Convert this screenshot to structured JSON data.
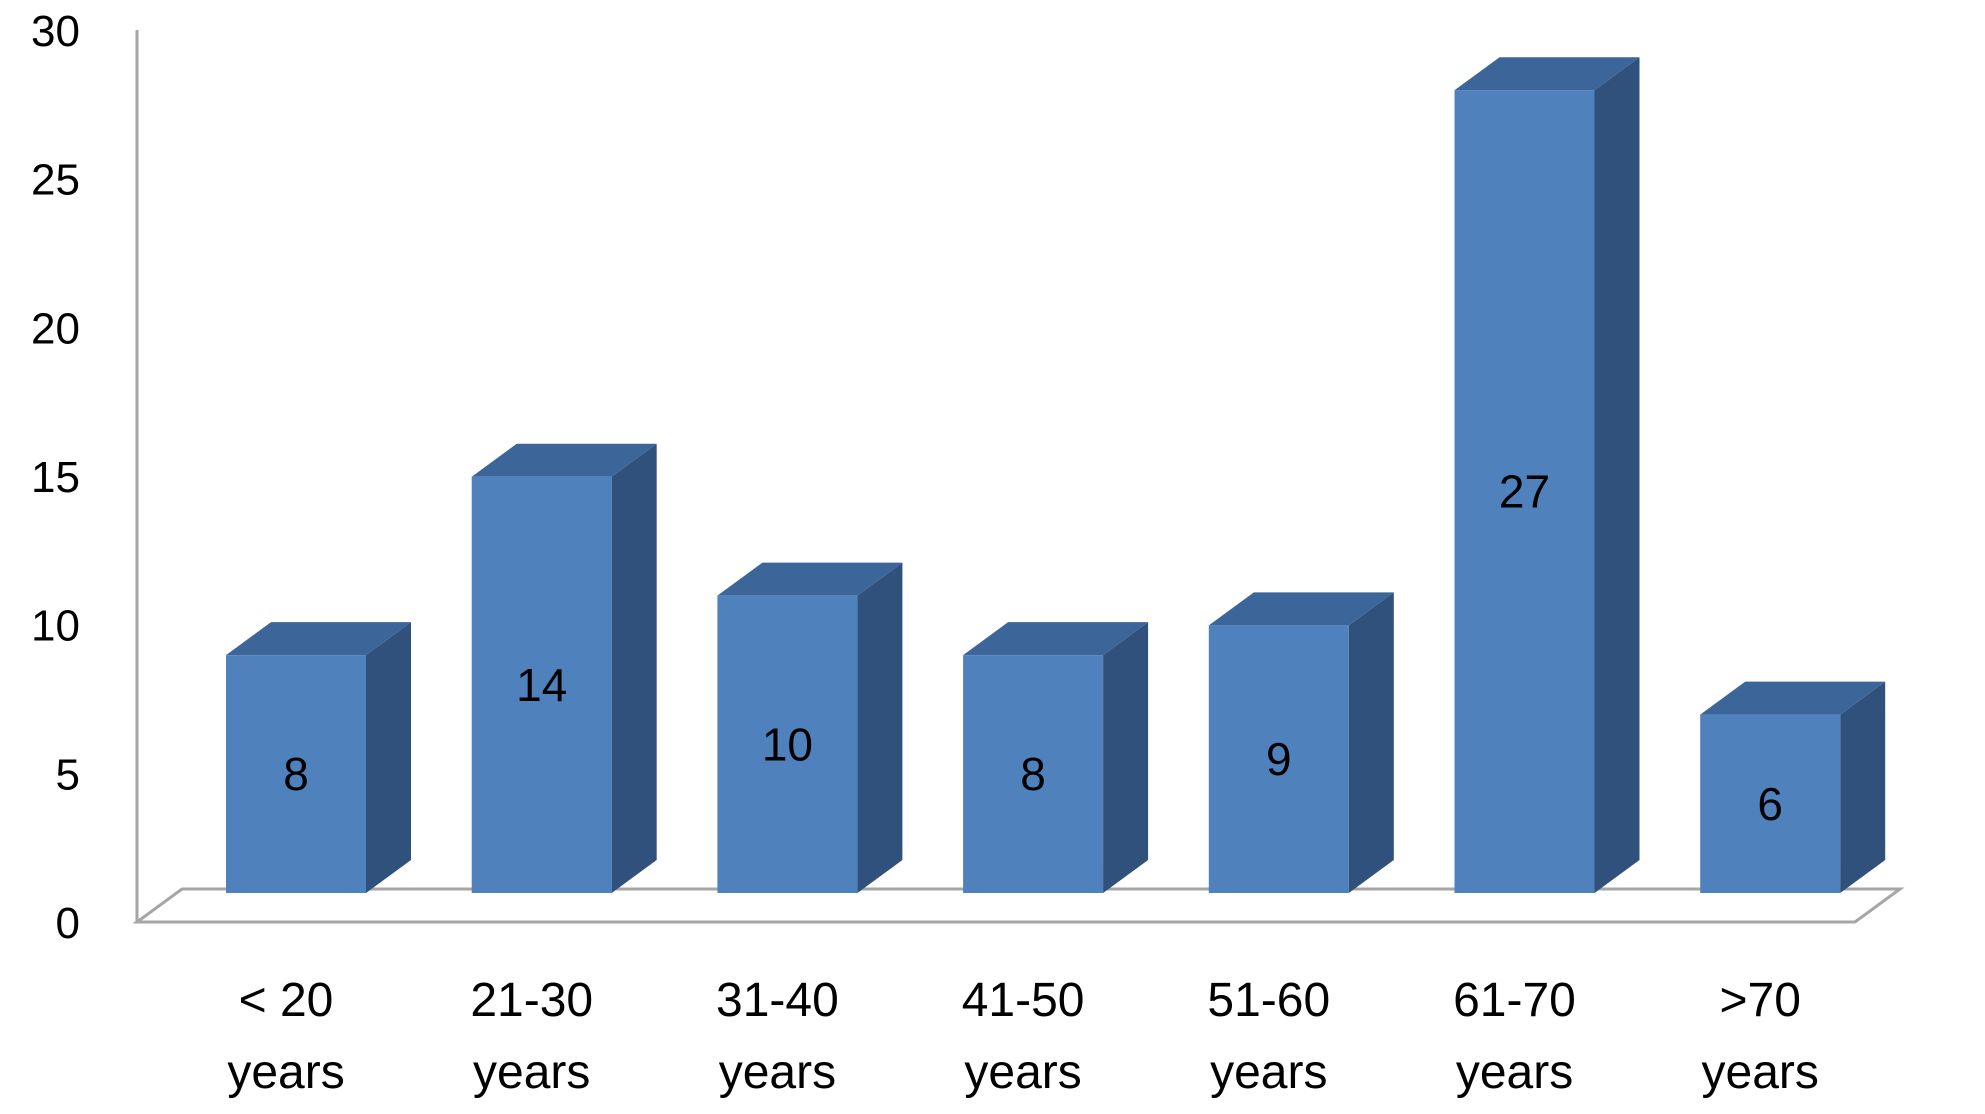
{
  "chart_data": {
    "type": "bar",
    "style": "3d-column",
    "categories": [
      [
        "< 20",
        "years"
      ],
      [
        "21-30",
        "years"
      ],
      [
        "31-40",
        "years"
      ],
      [
        "41-50",
        "years"
      ],
      [
        "51-60",
        "years"
      ],
      [
        "61-70",
        "years"
      ],
      [
        ">70",
        "years"
      ]
    ],
    "values": [
      8,
      14,
      10,
      8,
      9,
      27,
      6
    ],
    "data_labels": [
      "8",
      "14",
      "10",
      "8",
      "9",
      "27",
      "6"
    ],
    "y_ticks": [
      "0",
      "5",
      "10",
      "15",
      "20",
      "25",
      "30"
    ],
    "ylim": [
      0,
      30
    ],
    "grid": false,
    "legend": false,
    "colors": {
      "bar_front": "#4F81BD",
      "bar_side": "#30517C",
      "bar_top": "#3C669A",
      "axis": "#A6A6A6"
    }
  }
}
